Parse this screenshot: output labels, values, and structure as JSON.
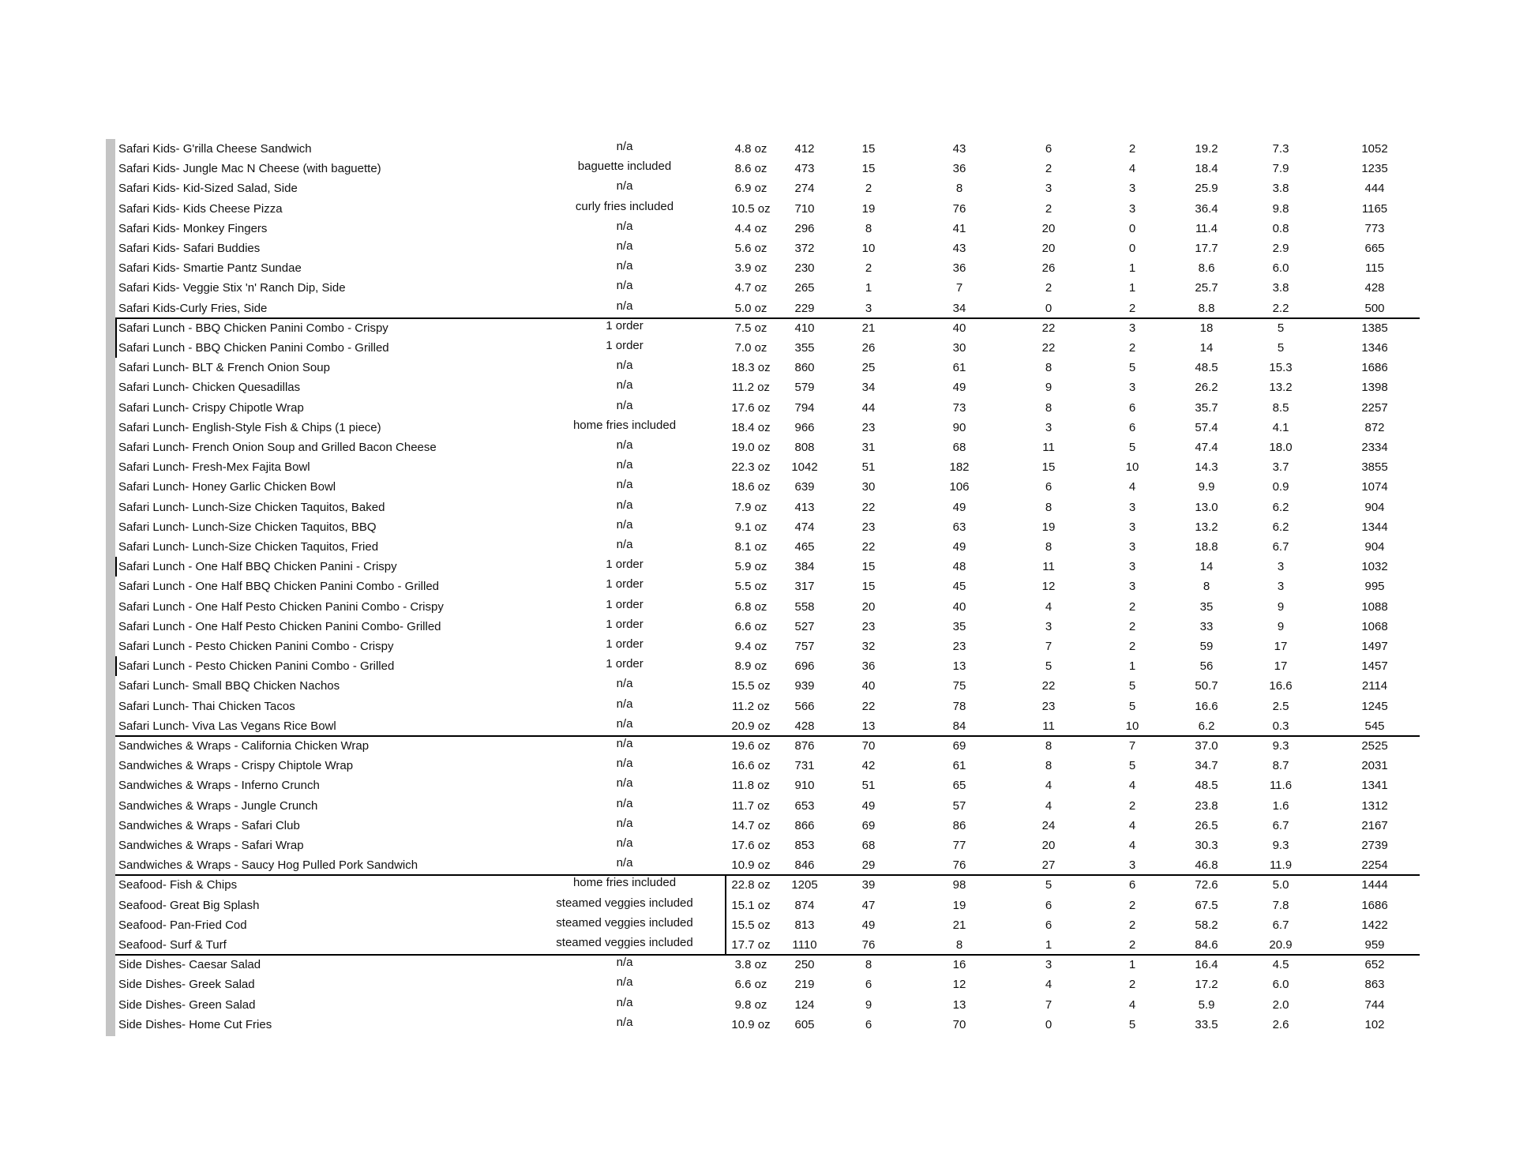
{
  "rows": [
    [
      "Safari Kids- G'rilla Cheese Sandwich",
      "n/a",
      "4.8 oz",
      "412",
      "15",
      "43",
      "6",
      "2",
      "19.2",
      "7.3",
      "1052"
    ],
    [
      "Safari Kids- Jungle Mac N Cheese (with baguette)",
      "baguette included",
      "8.6 oz",
      "473",
      "15",
      "36",
      "2",
      "4",
      "18.4",
      "7.9",
      "1235"
    ],
    [
      "Safari Kids- Kid-Sized Salad, Side",
      "n/a",
      "6.9 oz",
      "274",
      "2",
      "8",
      "3",
      "3",
      "25.9",
      "3.8",
      "444"
    ],
    [
      "Safari Kids- Kids Cheese Pizza",
      "curly fries included",
      "10.5 oz",
      "710",
      "19",
      "76",
      "2",
      "3",
      "36.4",
      "9.8",
      "1165"
    ],
    [
      "Safari Kids- Monkey Fingers",
      "n/a",
      "4.4 oz",
      "296",
      "8",
      "41",
      "20",
      "0",
      "11.4",
      "0.8",
      "773"
    ],
    [
      "Safari Kids- Safari Buddies",
      "n/a",
      "5.6 oz",
      "372",
      "10",
      "43",
      "20",
      "0",
      "17.7",
      "2.9",
      "665"
    ],
    [
      "Safari Kids- Smartie Pantz Sundae",
      "n/a",
      "3.9 oz",
      "230",
      "2",
      "36",
      "26",
      "1",
      "8.6",
      "6.0",
      "115"
    ],
    [
      "Safari Kids- Veggie Stix 'n' Ranch Dip, Side",
      "n/a",
      "4.7 oz",
      "265",
      "1",
      "7",
      "2",
      "1",
      "25.7",
      "3.8",
      "428"
    ],
    [
      "Safari Kids-Curly Fries, Side",
      "n/a",
      "5.0 oz",
      "229",
      "3",
      "34",
      "0",
      "2",
      "8.8",
      "2.2",
      "500"
    ],
    [
      "Safari Lunch - BBQ Chicken Panini Combo - Crispy",
      "1 order",
      "7.5 oz",
      "410",
      "21",
      "40",
      "22",
      "3",
      "18",
      "5",
      "1385"
    ],
    [
      "Safari Lunch - BBQ Chicken Panini Combo - Grilled",
      "1 order",
      "7.0 oz",
      "355",
      "26",
      "30",
      "22",
      "2",
      "14",
      "5",
      "1346"
    ],
    [
      "Safari Lunch- BLT & French Onion Soup",
      "n/a",
      "18.3 oz",
      "860",
      "25",
      "61",
      "8",
      "5",
      "48.5",
      "15.3",
      "1686"
    ],
    [
      "Safari Lunch- Chicken Quesadillas",
      "n/a",
      "11.2 oz",
      "579",
      "34",
      "49",
      "9",
      "3",
      "26.2",
      "13.2",
      "1398"
    ],
    [
      "Safari Lunch- Crispy Chipotle Wrap",
      "n/a",
      "17.6 oz",
      "794",
      "44",
      "73",
      "8",
      "6",
      "35.7",
      "8.5",
      "2257"
    ],
    [
      "Safari Lunch- English-Style Fish & Chips (1 piece)",
      "home fries included",
      "18.4 oz",
      "966",
      "23",
      "90",
      "3",
      "6",
      "57.4",
      "4.1",
      "872"
    ],
    [
      "Safari Lunch- French Onion Soup and Grilled Bacon Cheese",
      "n/a",
      "19.0 oz",
      "808",
      "31",
      "68",
      "11",
      "5",
      "47.4",
      "18.0",
      "2334"
    ],
    [
      "Safari Lunch- Fresh-Mex Fajita Bowl",
      "n/a",
      "22.3 oz",
      "1042",
      "51",
      "182",
      "15",
      "10",
      "14.3",
      "3.7",
      "3855"
    ],
    [
      "Safari Lunch- Honey Garlic Chicken Bowl",
      "n/a",
      "18.6 oz",
      "639",
      "30",
      "106",
      "6",
      "4",
      "9.9",
      "0.9",
      "1074"
    ],
    [
      "Safari Lunch- Lunch-Size Chicken Taquitos, Baked",
      "n/a",
      "7.9 oz",
      "413",
      "22",
      "49",
      "8",
      "3",
      "13.0",
      "6.2",
      "904"
    ],
    [
      "Safari Lunch- Lunch-Size Chicken Taquitos, BBQ",
      "n/a",
      "9.1 oz",
      "474",
      "23",
      "63",
      "19",
      "3",
      "13.2",
      "6.2",
      "1344"
    ],
    [
      "Safari Lunch- Lunch-Size Chicken Taquitos, Fried",
      "n/a",
      "8.1 oz",
      "465",
      "22",
      "49",
      "8",
      "3",
      "18.8",
      "6.7",
      "904"
    ],
    [
      "Safari Lunch - One Half BBQ Chicken Panini - Crispy",
      "1 order",
      "5.9 oz",
      "384",
      "15",
      "48",
      "11",
      "3",
      "14",
      "3",
      "1032"
    ],
    [
      "Safari Lunch - One Half BBQ Chicken Panini Combo - Grilled",
      "1 order",
      "5.5 oz",
      "317",
      "15",
      "45",
      "12",
      "3",
      "8",
      "3",
      "995"
    ],
    [
      "Safari Lunch -  One Half Pesto Chicken Panini Combo - Crispy",
      "1 order",
      "6.8 oz",
      "558",
      "20",
      "40",
      "4",
      "2",
      "35",
      "9",
      "1088"
    ],
    [
      "Safari Lunch -  One Half Pesto Chicken Panini Combo- Grilled",
      "1 order",
      "6.6 oz",
      "527",
      "23",
      "35",
      "3",
      "2",
      "33",
      "9",
      "1068"
    ],
    [
      "Safari Lunch - Pesto Chicken Panini Combo - Crispy",
      "1 order",
      "9.4 oz",
      "757",
      "32",
      "23",
      "7",
      "2",
      "59",
      "17",
      "1497"
    ],
    [
      "Safari Lunch - Pesto Chicken Panini Combo - Grilled",
      "1 order",
      "8.9 oz",
      "696",
      "36",
      "13",
      "5",
      "1",
      "56",
      "17",
      "1457"
    ],
    [
      "Safari Lunch- Small BBQ Chicken Nachos",
      "n/a",
      "15.5 oz",
      "939",
      "40",
      "75",
      "22",
      "5",
      "50.7",
      "16.6",
      "2114"
    ],
    [
      "Safari Lunch- Thai Chicken Tacos",
      "n/a",
      "11.2 oz",
      "566",
      "22",
      "78",
      "23",
      "5",
      "16.6",
      "2.5",
      "1245"
    ],
    [
      "Safari Lunch- Viva Las Vegans Rice Bowl",
      "n/a",
      "20.9 oz",
      "428",
      "13",
      "84",
      "11",
      "10",
      "6.2",
      "0.3",
      "545"
    ],
    [
      "Sandwiches & Wraps - California Chicken Wrap",
      "n/a",
      "19.6 oz",
      "876",
      "70",
      "69",
      "8",
      "7",
      "37.0",
      "9.3",
      "2525"
    ],
    [
      "Sandwiches & Wraps - Crispy Chiptole Wrap",
      "n/a",
      "16.6 oz",
      "731",
      "42",
      "61",
      "8",
      "5",
      "34.7",
      "8.7",
      "2031"
    ],
    [
      "Sandwiches & Wraps - Inferno Crunch",
      "n/a",
      "11.8 oz",
      "910",
      "51",
      "65",
      "4",
      "4",
      "48.5",
      "11.6",
      "1341"
    ],
    [
      "Sandwiches & Wraps - Jungle Crunch",
      "n/a",
      "11.7 oz",
      "653",
      "49",
      "57",
      "4",
      "2",
      "23.8",
      "1.6",
      "1312"
    ],
    [
      "Sandwiches & Wraps - Safari Club",
      "n/a",
      "14.7 oz",
      "866",
      "69",
      "86",
      "24",
      "4",
      "26.5",
      "6.7",
      "2167"
    ],
    [
      "Sandwiches & Wraps - Safari Wrap",
      "n/a",
      "17.6 oz",
      "853",
      "68",
      "77",
      "20",
      "4",
      "30.3",
      "9.3",
      "2739"
    ],
    [
      "Sandwiches & Wraps - Saucy Hog Pulled Pork Sandwich",
      "n/a",
      "10.9 oz",
      "846",
      "29",
      "76",
      "27",
      "3",
      "46.8",
      "11.9",
      "2254"
    ],
    [
      "Seafood- Fish & Chips",
      "home fries included",
      "22.8 oz",
      "1205",
      "39",
      "98",
      "5",
      "6",
      "72.6",
      "5.0",
      "1444"
    ],
    [
      "Seafood- Great Big Splash",
      "steamed veggies included",
      "15.1 oz",
      "874",
      "47",
      "19",
      "6",
      "2",
      "67.5",
      "7.8",
      "1686"
    ],
    [
      "Seafood- Pan-Fried Cod",
      "steamed veggies included",
      "15.5 oz",
      "813",
      "49",
      "21",
      "6",
      "2",
      "58.2",
      "6.7",
      "1422"
    ],
    [
      "Seafood- Surf & Turf",
      "steamed veggies included",
      "17.7 oz",
      "1110",
      "76",
      "8",
      "1",
      "2",
      "84.6",
      "20.9",
      "959"
    ],
    [
      "Side Dishes- Caesar Salad",
      "n/a",
      "3.8 oz",
      "250",
      "8",
      "16",
      "3",
      "1",
      "16.4",
      "4.5",
      "652"
    ],
    [
      "Side Dishes- Greek Salad",
      "n/a",
      "6.6 oz",
      "219",
      "6",
      "12",
      "4",
      "2",
      "17.2",
      "6.0",
      "863"
    ],
    [
      "Side Dishes- Green Salad",
      "n/a",
      "9.8 oz",
      "124",
      "9",
      "13",
      "7",
      "4",
      "5.9",
      "2.0",
      "744"
    ],
    [
      "Side Dishes- Home Cut Fries",
      "n/a",
      "10.9 oz",
      "605",
      "6",
      "70",
      "0",
      "5",
      "33.5",
      "2.6",
      "102"
    ]
  ],
  "colors": {
    "row_marker_bar": "#c4c4c4",
    "rule": "#000000"
  }
}
